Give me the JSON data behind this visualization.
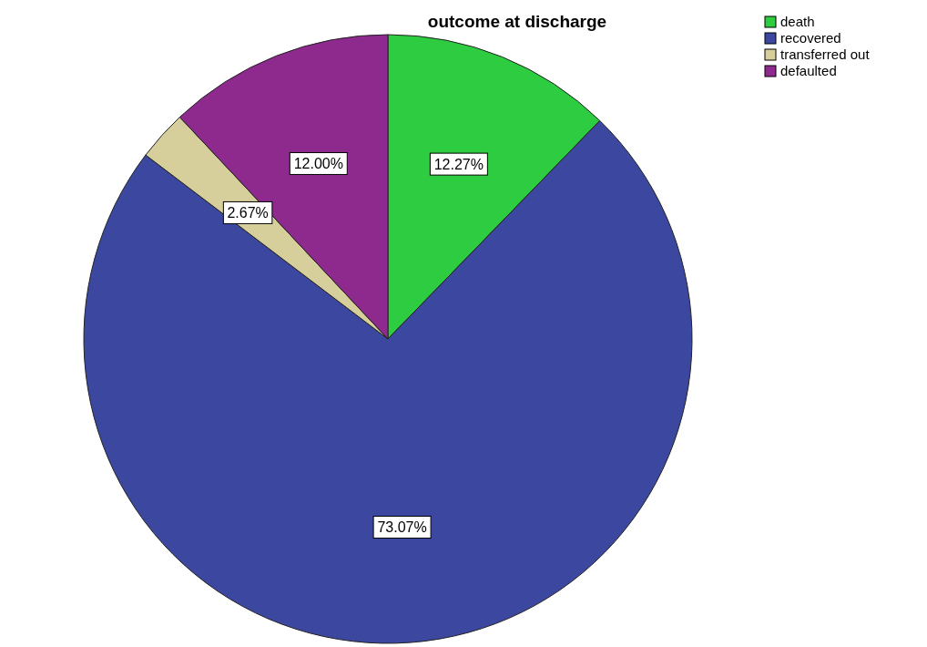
{
  "chart_data": {
    "type": "pie",
    "title": "outcome at discharge",
    "categories": [
      "death",
      "recovered",
      "transferred out",
      "defaulted"
    ],
    "values": [
      12.27,
      73.07,
      2.67,
      12.0
    ],
    "value_labels": [
      "12.27%",
      "73.07%",
      "2.67%",
      "12.00%"
    ],
    "colors": [
      "#2ecc40",
      "#3c48a0",
      "#d6cf9c",
      "#8e2a8e"
    ],
    "legend": "top right"
  }
}
